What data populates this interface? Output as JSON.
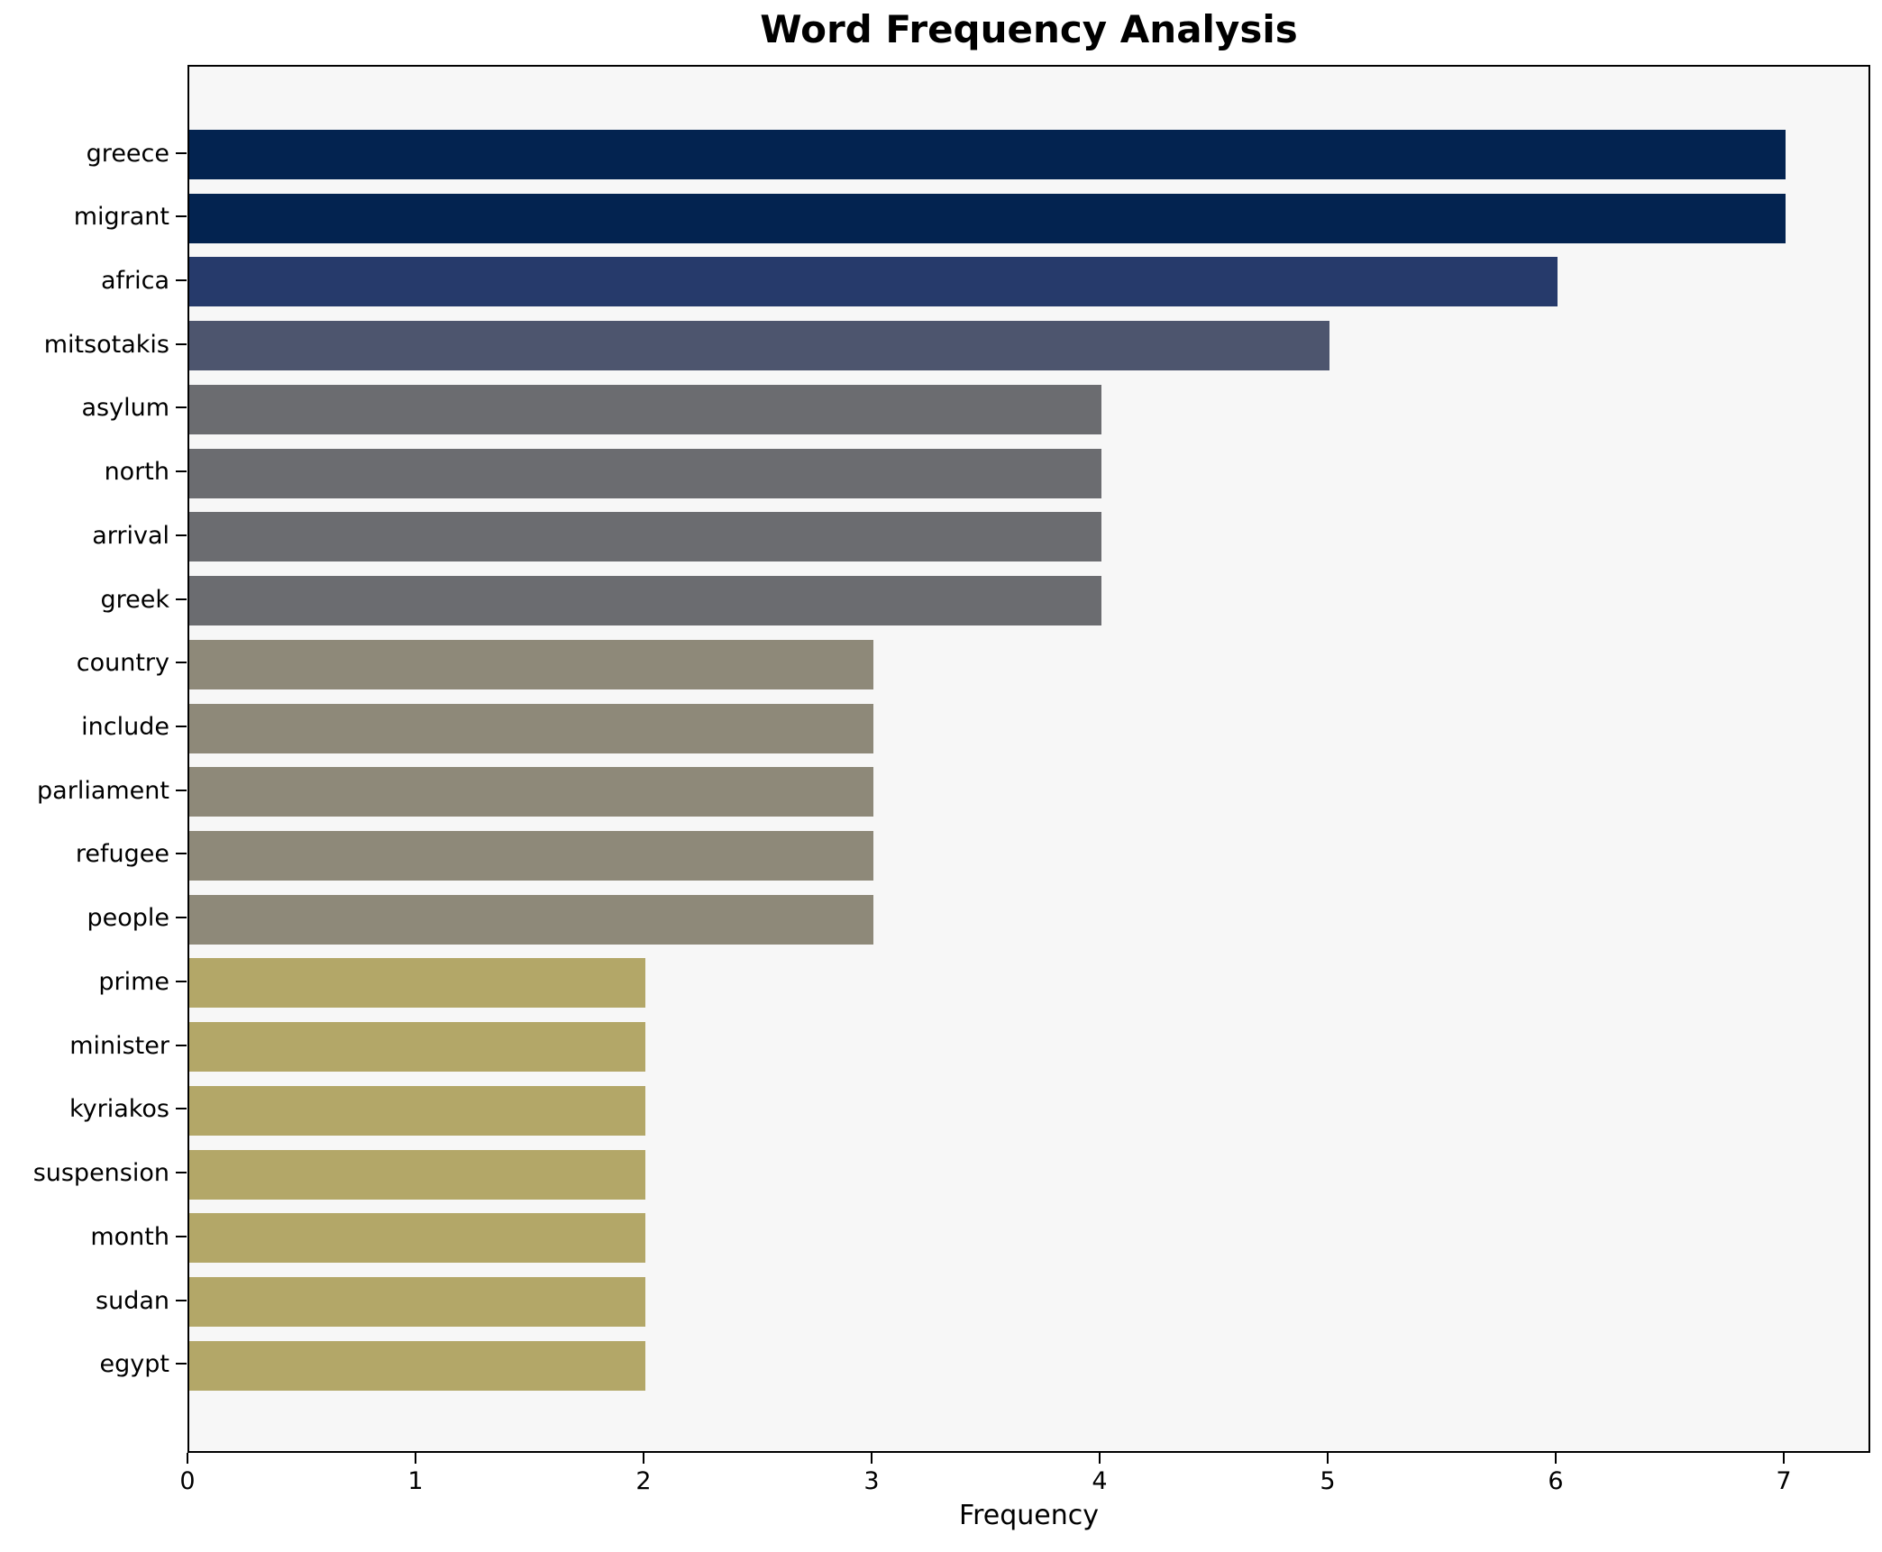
{
  "title": "Word Frequency Analysis",
  "xlabel": "Frequency",
  "chart_data": {
    "type": "bar",
    "orientation": "horizontal",
    "title": "Word Frequency Analysis",
    "xlabel": "Frequency",
    "ylabel": "",
    "categories": [
      "greece",
      "migrant",
      "africa",
      "mitsotakis",
      "asylum",
      "north",
      "arrival",
      "greek",
      "country",
      "include",
      "parliament",
      "refugee",
      "people",
      "prime",
      "minister",
      "kyriakos",
      "suspension",
      "month",
      "sudan",
      "egypt"
    ],
    "values": [
      7,
      7,
      6,
      5,
      4,
      4,
      4,
      4,
      3,
      3,
      3,
      3,
      3,
      2,
      2,
      2,
      2,
      2,
      2,
      2
    ],
    "bar_colors": [
      "#032350",
      "#032350",
      "#263a6b",
      "#4d556e",
      "#6b6c70",
      "#6b6c70",
      "#6b6c70",
      "#6b6c70",
      "#8e8979",
      "#8e8979",
      "#8e8979",
      "#8e8979",
      "#8e8979",
      "#b3a768",
      "#b3a768",
      "#b3a768",
      "#b3a768",
      "#b3a768",
      "#b3a768",
      "#b3a768"
    ],
    "xticks": [
      0,
      1,
      2,
      3,
      4,
      5,
      6,
      7
    ],
    "xlim": [
      0,
      7.38
    ],
    "grid": false,
    "legend": "none",
    "plot_background": "#f7f7f7",
    "figure_background": "#ffffff",
    "spine_color": "#000000"
  }
}
